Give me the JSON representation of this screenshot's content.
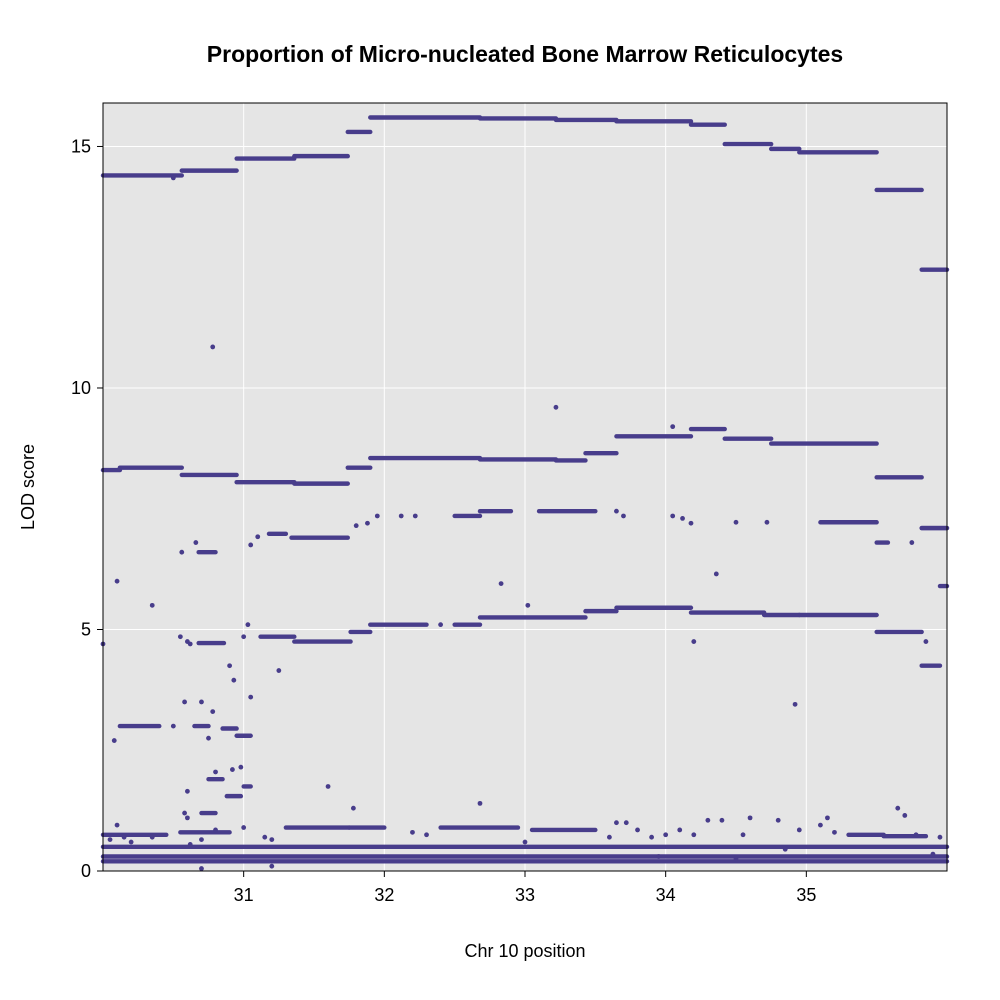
{
  "chart_data": {
    "type": "scatter",
    "title": "Proportion of Micro-nucleated Bone Marrow Reticulocytes",
    "xlabel": "Chr 10 position",
    "ylabel": "LOD score",
    "xlim": [
      30.0,
      36.0
    ],
    "ylim": [
      0,
      15.9
    ],
    "x_ticks": [
      31,
      32,
      33,
      34,
      35
    ],
    "y_ticks": [
      0,
      5,
      10,
      15
    ],
    "grid": true,
    "legend": "none",
    "colors": {
      "points": "#483d8b",
      "panel": "#e5e5e5",
      "grid": "#ffffff"
    },
    "series": [
      {
        "segments": [
          [
            30.0,
            30.56,
            14.4
          ],
          [
            30.56,
            30.95,
            14.5
          ],
          [
            30.95,
            31.36,
            14.75
          ],
          [
            31.36,
            31.74,
            14.8
          ],
          [
            31.74,
            31.9,
            15.3
          ],
          [
            31.9,
            32.68,
            15.6
          ],
          [
            32.68,
            33.22,
            15.58
          ],
          [
            33.22,
            33.65,
            15.55
          ],
          [
            33.65,
            34.18,
            15.52
          ],
          [
            34.18,
            34.42,
            15.45
          ],
          [
            34.42,
            34.75,
            15.05
          ],
          [
            34.75,
            34.95,
            14.95
          ],
          [
            34.95,
            35.5,
            14.88
          ],
          [
            35.5,
            35.82,
            14.1
          ],
          [
            35.82,
            36.0,
            12.45
          ]
        ],
        "points": [
          [
            30.5,
            14.35
          ]
        ]
      },
      {
        "segments": [
          [
            30.0,
            30.12,
            8.3
          ],
          [
            30.12,
            30.56,
            8.35
          ],
          [
            30.56,
            30.95,
            8.2
          ],
          [
            30.95,
            31.36,
            8.05
          ],
          [
            31.36,
            31.74,
            8.02
          ],
          [
            31.74,
            31.9,
            8.35
          ],
          [
            31.9,
            32.68,
            8.55
          ],
          [
            32.68,
            33.22,
            8.52
          ],
          [
            33.22,
            33.43,
            8.5
          ],
          [
            33.43,
            33.65,
            8.65
          ],
          [
            33.65,
            34.18,
            9.0
          ],
          [
            34.18,
            34.42,
            9.15
          ],
          [
            34.42,
            34.75,
            8.95
          ],
          [
            34.75,
            35.5,
            8.85
          ],
          [
            35.5,
            35.82,
            8.15
          ],
          [
            35.82,
            36.0,
            7.1
          ]
        ],
        "points": [
          [
            30.78,
            10.85
          ],
          [
            33.22,
            9.6
          ],
          [
            34.05,
            9.2
          ]
        ]
      },
      {
        "segments": [
          [
            30.68,
            30.8,
            6.6
          ],
          [
            31.18,
            31.3,
            6.98
          ],
          [
            31.34,
            31.74,
            6.9
          ],
          [
            32.5,
            32.68,
            7.35
          ],
          [
            32.68,
            32.9,
            7.45
          ],
          [
            33.1,
            33.5,
            7.45
          ],
          [
            35.1,
            35.5,
            7.22
          ],
          [
            35.5,
            35.58,
            6.8
          ],
          [
            35.82,
            36.0,
            7.1
          ]
        ],
        "points": [
          [
            30.1,
            6.0
          ],
          [
            30.56,
            6.6
          ],
          [
            30.66,
            6.8
          ],
          [
            31.05,
            6.75
          ],
          [
            31.1,
            6.92
          ],
          [
            31.8,
            7.15
          ],
          [
            31.88,
            7.2
          ],
          [
            31.95,
            7.35
          ],
          [
            32.12,
            7.35
          ],
          [
            32.22,
            7.35
          ],
          [
            33.7,
            7.35
          ],
          [
            33.65,
            7.45
          ],
          [
            34.05,
            7.35
          ],
          [
            34.12,
            7.3
          ],
          [
            34.18,
            7.2
          ],
          [
            34.5,
            7.22
          ],
          [
            34.72,
            7.22
          ],
          [
            35.75,
            6.8
          ],
          [
            32.83,
            5.95
          ],
          [
            33.02,
            5.5
          ],
          [
            34.36,
            6.15
          ],
          [
            30.35,
            5.5
          ]
        ]
      },
      {
        "segments": [
          [
            30.68,
            30.86,
            4.72
          ],
          [
            31.12,
            31.36,
            4.85
          ],
          [
            31.36,
            31.76,
            4.75
          ],
          [
            31.76,
            31.9,
            4.95
          ],
          [
            31.9,
            32.3,
            5.1
          ],
          [
            32.5,
            32.68,
            5.1
          ],
          [
            32.68,
            33.43,
            5.25
          ],
          [
            33.43,
            33.65,
            5.38
          ],
          [
            33.65,
            34.18,
            5.45
          ],
          [
            34.18,
            34.7,
            5.35
          ],
          [
            34.7,
            34.95,
            5.3
          ],
          [
            34.95,
            35.5,
            5.3
          ],
          [
            35.5,
            35.82,
            4.95
          ],
          [
            35.82,
            35.95,
            4.25
          ],
          [
            35.95,
            36.0,
            5.9
          ]
        ],
        "points": [
          [
            30.0,
            4.7
          ],
          [
            30.55,
            4.85
          ],
          [
            30.6,
            4.75
          ],
          [
            30.62,
            4.7
          ],
          [
            30.9,
            4.25
          ],
          [
            30.93,
            3.95
          ],
          [
            31.0,
            4.85
          ],
          [
            31.03,
            5.1
          ],
          [
            31.25,
            4.15
          ],
          [
            34.2,
            4.75
          ],
          [
            34.92,
            3.45
          ],
          [
            35.85,
            4.75
          ],
          [
            32.4,
            5.1
          ]
        ]
      },
      {
        "segments": [
          [
            30.12,
            30.4,
            3.0
          ],
          [
            30.65,
            30.75,
            3.0
          ],
          [
            30.85,
            30.95,
            2.95
          ],
          [
            30.95,
            31.05,
            2.8
          ],
          [
            30.75,
            30.85,
            1.9
          ],
          [
            30.88,
            30.98,
            1.55
          ],
          [
            31.0,
            31.05,
            1.75
          ],
          [
            30.7,
            30.8,
            1.2
          ]
        ],
        "points": [
          [
            30.08,
            2.7
          ],
          [
            30.5,
            3.0
          ],
          [
            30.58,
            3.5
          ],
          [
            30.7,
            3.5
          ],
          [
            30.75,
            2.75
          ],
          [
            31.05,
            3.6
          ],
          [
            30.98,
            2.15
          ],
          [
            30.92,
            2.1
          ],
          [
            30.8,
            2.05
          ],
          [
            30.6,
            1.65
          ],
          [
            30.78,
            3.3
          ],
          [
            31.6,
            1.75
          ],
          [
            31.78,
            1.3
          ],
          [
            32.68,
            1.4
          ],
          [
            30.58,
            1.2
          ],
          [
            30.6,
            1.1
          ]
        ]
      },
      {
        "segments": [
          [
            30.0,
            30.45,
            0.75
          ],
          [
            30.55,
            30.9,
            0.8
          ],
          [
            31.3,
            31.75,
            0.9
          ],
          [
            31.75,
            32.0,
            0.9
          ],
          [
            32.4,
            32.95,
            0.9
          ],
          [
            33.05,
            33.5,
            0.85
          ],
          [
            35.3,
            35.55,
            0.75
          ],
          [
            35.55,
            35.85,
            0.72
          ],
          [
            30.0,
            36.0,
            0.5
          ],
          [
            30.0,
            36.0,
            0.3
          ],
          [
            30.0,
            36.0,
            0.2
          ]
        ],
        "points": [
          [
            30.05,
            0.65
          ],
          [
            30.1,
            0.95
          ],
          [
            30.15,
            0.7
          ],
          [
            30.2,
            0.6
          ],
          [
            30.35,
            0.7
          ],
          [
            30.62,
            0.55
          ],
          [
            30.7,
            0.65
          ],
          [
            30.8,
            0.85
          ],
          [
            31.0,
            0.9
          ],
          [
            31.15,
            0.7
          ],
          [
            31.2,
            0.65
          ],
          [
            32.2,
            0.8
          ],
          [
            32.3,
            0.75
          ],
          [
            33.0,
            0.6
          ],
          [
            33.6,
            0.7
          ],
          [
            33.65,
            1.0
          ],
          [
            33.72,
            1.0
          ],
          [
            33.8,
            0.85
          ],
          [
            33.9,
            0.7
          ],
          [
            34.0,
            0.75
          ],
          [
            34.1,
            0.85
          ],
          [
            34.2,
            0.75
          ],
          [
            34.3,
            1.05
          ],
          [
            34.4,
            1.05
          ],
          [
            34.55,
            0.75
          ],
          [
            34.6,
            1.1
          ],
          [
            34.8,
            1.05
          ],
          [
            34.95,
            0.85
          ],
          [
            35.1,
            0.95
          ],
          [
            35.15,
            1.1
          ],
          [
            35.2,
            0.8
          ],
          [
            35.65,
            1.3
          ],
          [
            35.7,
            1.15
          ],
          [
            35.78,
            0.75
          ],
          [
            35.95,
            0.7
          ],
          [
            31.2,
            0.1
          ],
          [
            30.7,
            0.05
          ],
          [
            34.5,
            0.25
          ],
          [
            34.85,
            0.45
          ],
          [
            33.95,
            0.3
          ],
          [
            35.9,
            0.35
          ]
        ]
      }
    ]
  }
}
